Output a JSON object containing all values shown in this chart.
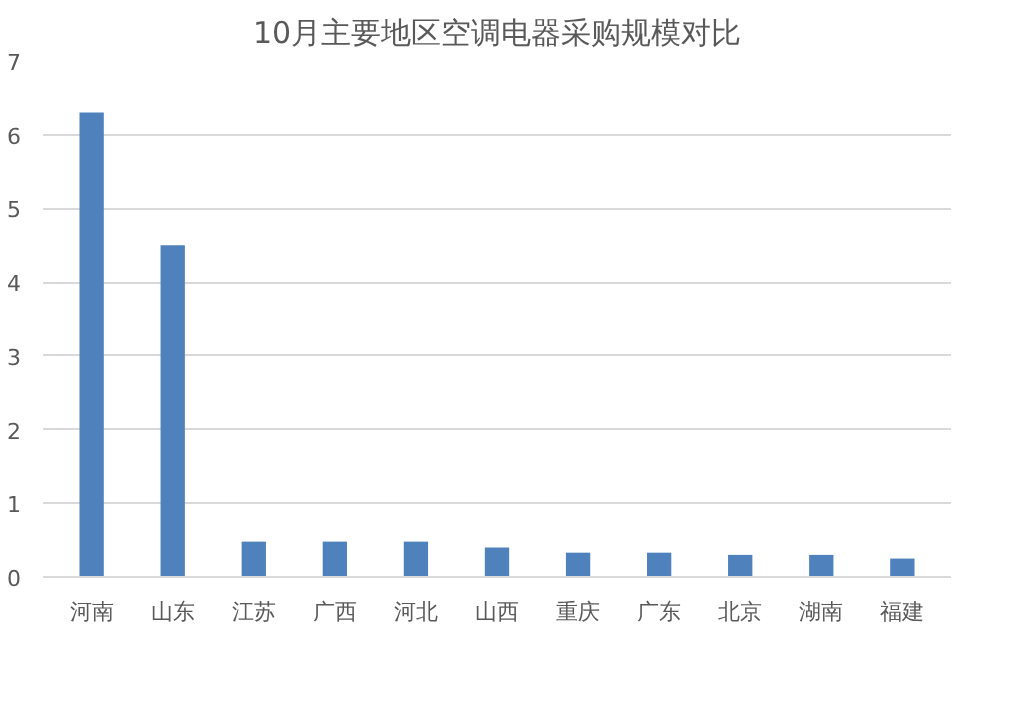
{
  "chart_data": {
    "type": "bar",
    "title": "10月主要地区空调电器采购规模对比",
    "categories": [
      "河南",
      "山东",
      "江苏",
      "广西",
      "河北",
      "山西",
      "重庆",
      "广东",
      "北京",
      "湖南",
      "福建"
    ],
    "values": [
      6.3,
      4.5,
      0.48,
      0.48,
      0.48,
      0.4,
      0.33,
      0.33,
      0.3,
      0.3,
      0.25
    ],
    "color": "#4f81bd",
    "ylim": [
      0,
      7
    ],
    "yticks": [
      0,
      1,
      2,
      3,
      4,
      5,
      6,
      7
    ],
    "grid": "y"
  }
}
